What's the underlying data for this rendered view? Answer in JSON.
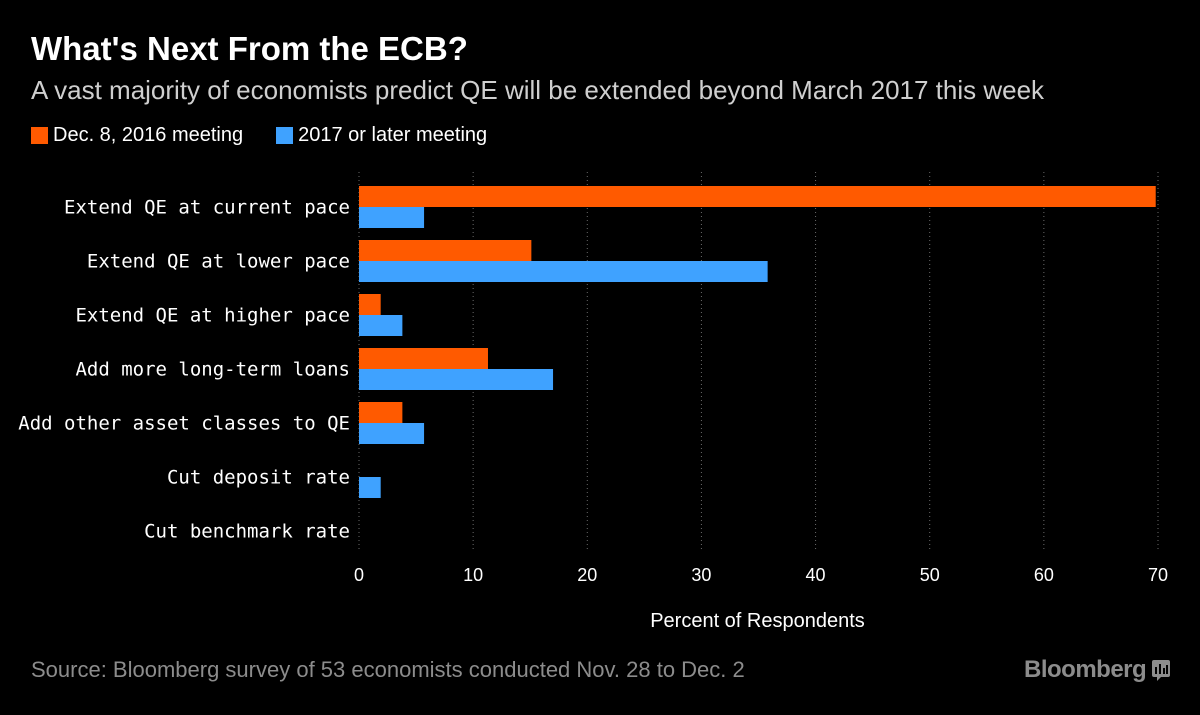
{
  "title": "What's Next From the ECB?",
  "subtitle": "A vast majority of economists predict QE will be extended beyond March 2017 this week",
  "source": "Source: Bloomberg survey of 53 economists conducted Nov. 28 to Dec. 2",
  "brand": "Bloomberg",
  "colors": {
    "background": "#000000",
    "series1": "#ff5a00",
    "series2": "#3fa2ff",
    "grid": "#6a6a6a"
  },
  "chart_data": {
    "type": "bar",
    "orientation": "horizontal",
    "categories": [
      "Extend QE at current pace",
      "Extend QE at lower pace",
      "Extend QE at higher pace",
      "Add more long-term loans",
      "Add other asset classes to QE",
      "Cut deposit rate",
      "Cut benchmark rate"
    ],
    "series": [
      {
        "name": "Dec. 8, 2016 meeting",
        "color": "#ff5a00",
        "values": [
          69.8,
          15.1,
          1.9,
          11.3,
          3.8,
          0,
          0
        ]
      },
      {
        "name": "2017 or later meeting",
        "color": "#3fa2ff",
        "values": [
          5.7,
          35.8,
          3.8,
          17.0,
          5.7,
          1.9,
          0
        ]
      }
    ],
    "xlabel": "Percent of Respondents",
    "ylabel": "",
    "xlim": [
      0,
      70
    ],
    "xticks": [
      "0",
      "10",
      "20",
      "30",
      "40",
      "50",
      "60",
      "70"
    ],
    "grid": "vertical dotted",
    "legend": "top-left"
  }
}
